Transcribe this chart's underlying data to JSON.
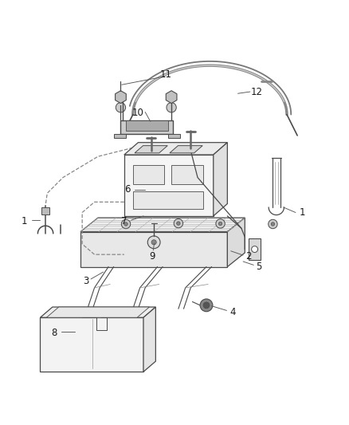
{
  "bg_color": "#ffffff",
  "line_color": "#4a4a4a",
  "label_color": "#1a1a1a",
  "fig_width": 4.39,
  "fig_height": 5.33,
  "dpi": 100,
  "labels": {
    "1a": [
      0.07,
      0.475,
      "1"
    ],
    "1b": [
      0.865,
      0.5,
      "1"
    ],
    "2": [
      0.71,
      0.375,
      "2"
    ],
    "3": [
      0.245,
      0.305,
      "3"
    ],
    "4": [
      0.665,
      0.215,
      "4"
    ],
    "5": [
      0.74,
      0.345,
      "5"
    ],
    "6": [
      0.365,
      0.565,
      "6"
    ],
    "7": [
      0.355,
      0.475,
      "7"
    ],
    "8": [
      0.155,
      0.155,
      "8"
    ],
    "9": [
      0.435,
      0.375,
      "9"
    ],
    "10": [
      0.395,
      0.785,
      "10"
    ],
    "11": [
      0.475,
      0.895,
      "11"
    ],
    "12": [
      0.735,
      0.845,
      "12"
    ]
  }
}
